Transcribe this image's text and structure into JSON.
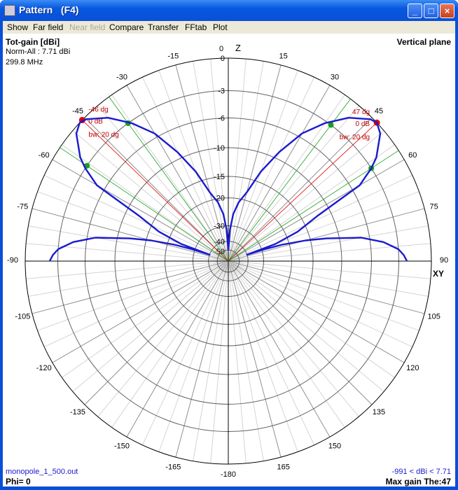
{
  "window": {
    "title": "Pattern   (F4)",
    "minimize": "_",
    "maximize": "□",
    "close": "×"
  },
  "menu": [
    {
      "label": "Show",
      "enabled": true
    },
    {
      "label": "Far field",
      "enabled": true
    },
    {
      "label": "Near field",
      "enabled": false
    },
    {
      "label": "Compare",
      "enabled": true
    },
    {
      "label": "Transfer",
      "enabled": true
    },
    {
      "label": "FFtab",
      "enabled": true
    },
    {
      "label": "Plot",
      "enabled": true
    }
  ],
  "info": {
    "quantity": "Tot-gain [dBi]",
    "norm": "Norm-All : 7.71 dBi",
    "freq": "299.8 MHz",
    "plane": "Vertical plane",
    "file": "monopole_1_500.out",
    "phi": "Phi= 0",
    "range": "-991 < dBi < 7.71",
    "max_gain": "Max gain The:47"
  },
  "axes": {
    "z_label": "Z",
    "xy_label": "XY"
  },
  "colors": {
    "pattern": "#1a1ad0",
    "peak": "#e00000",
    "halfpower": "#18a018",
    "grid": "#c0c0c0",
    "grid_major": "#606060"
  },
  "chart_data": {
    "type": "polar",
    "angle_labels": [
      "0",
      "15",
      "30",
      "45",
      "60",
      "75",
      "90",
      "105",
      "120",
      "135",
      "150",
      "165",
      "-180",
      "-165",
      "-150",
      "-135",
      "-120",
      "-105",
      "-90",
      "-75",
      "-60",
      "-45",
      "-30",
      "-15"
    ],
    "ring_labels": [
      0,
      -3,
      -6,
      -10,
      -15,
      -20,
      -30,
      -40,
      -50
    ],
    "theta_deg": [
      0,
      3,
      6,
      10,
      15,
      20,
      25,
      30,
      35,
      40,
      45,
      47,
      50,
      55,
      57,
      60,
      63,
      67,
      70,
      71,
      72,
      73,
      75,
      77,
      80,
      83,
      86,
      88,
      90
    ],
    "gain_db": [
      -50,
      -32,
      -25,
      -21,
      -18,
      -13,
      -9,
      -5.5,
      -3.2,
      -1.4,
      -0.2,
      0,
      -0.4,
      -2,
      -3,
      -5,
      -12,
      -17,
      -24,
      -40,
      -28,
      -22,
      -16,
      -12,
      -7,
      -4.5,
      -3,
      -2.5,
      -2.2
    ],
    "markers": [
      {
        "side": "left",
        "peak_deg": -46,
        "peak_label": "-46 dg",
        "level_label": "0 dB",
        "bw_label": "bw: 20 dg",
        "bw_deg": 20
      },
      {
        "side": "right",
        "peak_deg": 47,
        "peak_label": "47 dg",
        "level_label": "0 dB",
        "bw_label": "bw: 20 dg",
        "bw_deg": 20
      }
    ]
  }
}
